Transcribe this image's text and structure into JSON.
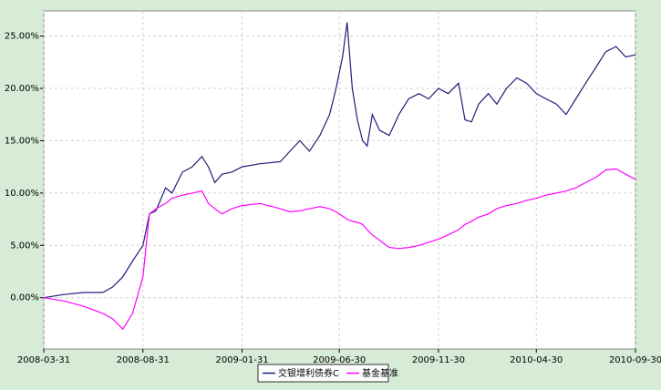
{
  "chart_data": {
    "type": "line",
    "x": [
      "2008-03-31",
      "2008-04-30",
      "2008-05-31",
      "2008-06-30",
      "2008-07-15",
      "2008-07-31",
      "2008-08-15",
      "2008-08-31",
      "2008-09-10",
      "2008-09-20",
      "2008-10-05",
      "2008-10-15",
      "2008-10-31",
      "2008-11-15",
      "2008-11-30",
      "2008-12-10",
      "2008-12-20",
      "2008-12-31",
      "2009-01-15",
      "2009-01-31",
      "2009-02-28",
      "2009-03-31",
      "2009-04-15",
      "2009-04-30",
      "2009-05-15",
      "2009-05-31",
      "2009-06-15",
      "2009-06-25",
      "2009-07-05",
      "2009-07-12",
      "2009-07-20",
      "2009-07-28",
      "2009-08-05",
      "2009-08-12",
      "2009-08-20",
      "2009-08-31",
      "2009-09-15",
      "2009-09-30",
      "2009-10-15",
      "2009-10-31",
      "2009-11-15",
      "2009-11-30",
      "2009-12-15",
      "2009-12-31",
      "2010-01-10",
      "2010-01-20",
      "2010-01-31",
      "2010-02-15",
      "2010-02-28",
      "2010-03-15",
      "2010-03-31",
      "2010-04-15",
      "2010-04-30",
      "2010-05-15",
      "2010-05-31",
      "2010-06-15",
      "2010-06-30",
      "2010-07-15",
      "2010-07-31",
      "2010-08-15",
      "2010-08-31",
      "2010-09-15",
      "2010-09-30"
    ],
    "series": [
      {
        "name": "交银增利债券C",
        "color": "#1f1f7a",
        "values": [
          0,
          0.3,
          0.5,
          0.5,
          1.0,
          2.0,
          3.5,
          5.0,
          8.0,
          8.3,
          10.5,
          10.0,
          12.0,
          12.5,
          13.5,
          12.5,
          11.0,
          11.8,
          12.0,
          12.5,
          12.8,
          13.0,
          14.0,
          15.0,
          14.0,
          15.5,
          17.5,
          20.0,
          23.0,
          26.3,
          20.0,
          17.0,
          15.0,
          14.5,
          17.5,
          16.0,
          15.5,
          17.5,
          19.0,
          19.5,
          19.0,
          20.0,
          19.5,
          20.5,
          17.0,
          16.8,
          18.5,
          19.5,
          18.5,
          20.0,
          21.0,
          20.5,
          19.5,
          19.0,
          18.5,
          17.5,
          19.0,
          20.5,
          22.0,
          23.5,
          24.0,
          23.0,
          23.2
        ]
      },
      {
        "name": "基金基准",
        "color": "#ff00ff",
        "values": [
          0,
          -0.3,
          -0.8,
          -1.5,
          -2.0,
          -3.0,
          -1.5,
          2.0,
          8.0,
          8.5,
          9.0,
          9.5,
          9.8,
          10.0,
          10.2,
          9.0,
          8.5,
          8.0,
          8.5,
          8.8,
          9.0,
          8.5,
          8.2,
          8.3,
          8.5,
          8.7,
          8.5,
          8.2,
          7.8,
          7.5,
          7.3,
          7.2,
          7.0,
          6.5,
          6.0,
          5.5,
          4.8,
          4.7,
          4.8,
          5.0,
          5.3,
          5.6,
          6.0,
          6.5,
          7.0,
          7.3,
          7.7,
          8.0,
          8.5,
          8.8,
          9.0,
          9.3,
          9.5,
          9.8,
          10.0,
          10.2,
          10.5,
          11.0,
          11.5,
          12.2,
          12.3,
          11.8,
          11.3
        ]
      }
    ],
    "xlim": [
      "2008-03-31",
      "2010-09-30"
    ],
    "xticks": [
      "2008-03-31",
      "2008-08-31",
      "2009-01-31",
      "2009-06-30",
      "2009-11-30",
      "2010-04-30",
      "2010-09-30"
    ],
    "ylim": [
      -4.9,
      27.4
    ],
    "yticks": [
      {
        "value": 0,
        "label": "0.00%"
      },
      {
        "value": 5,
        "label": "5.00%"
      },
      {
        "value": 10,
        "label": "10.00%"
      },
      {
        "value": 15,
        "label": "15.00%"
      },
      {
        "value": 20,
        "label": "20.00%"
      },
      {
        "value": 25,
        "label": "25.00%"
      }
    ],
    "grid": true
  }
}
